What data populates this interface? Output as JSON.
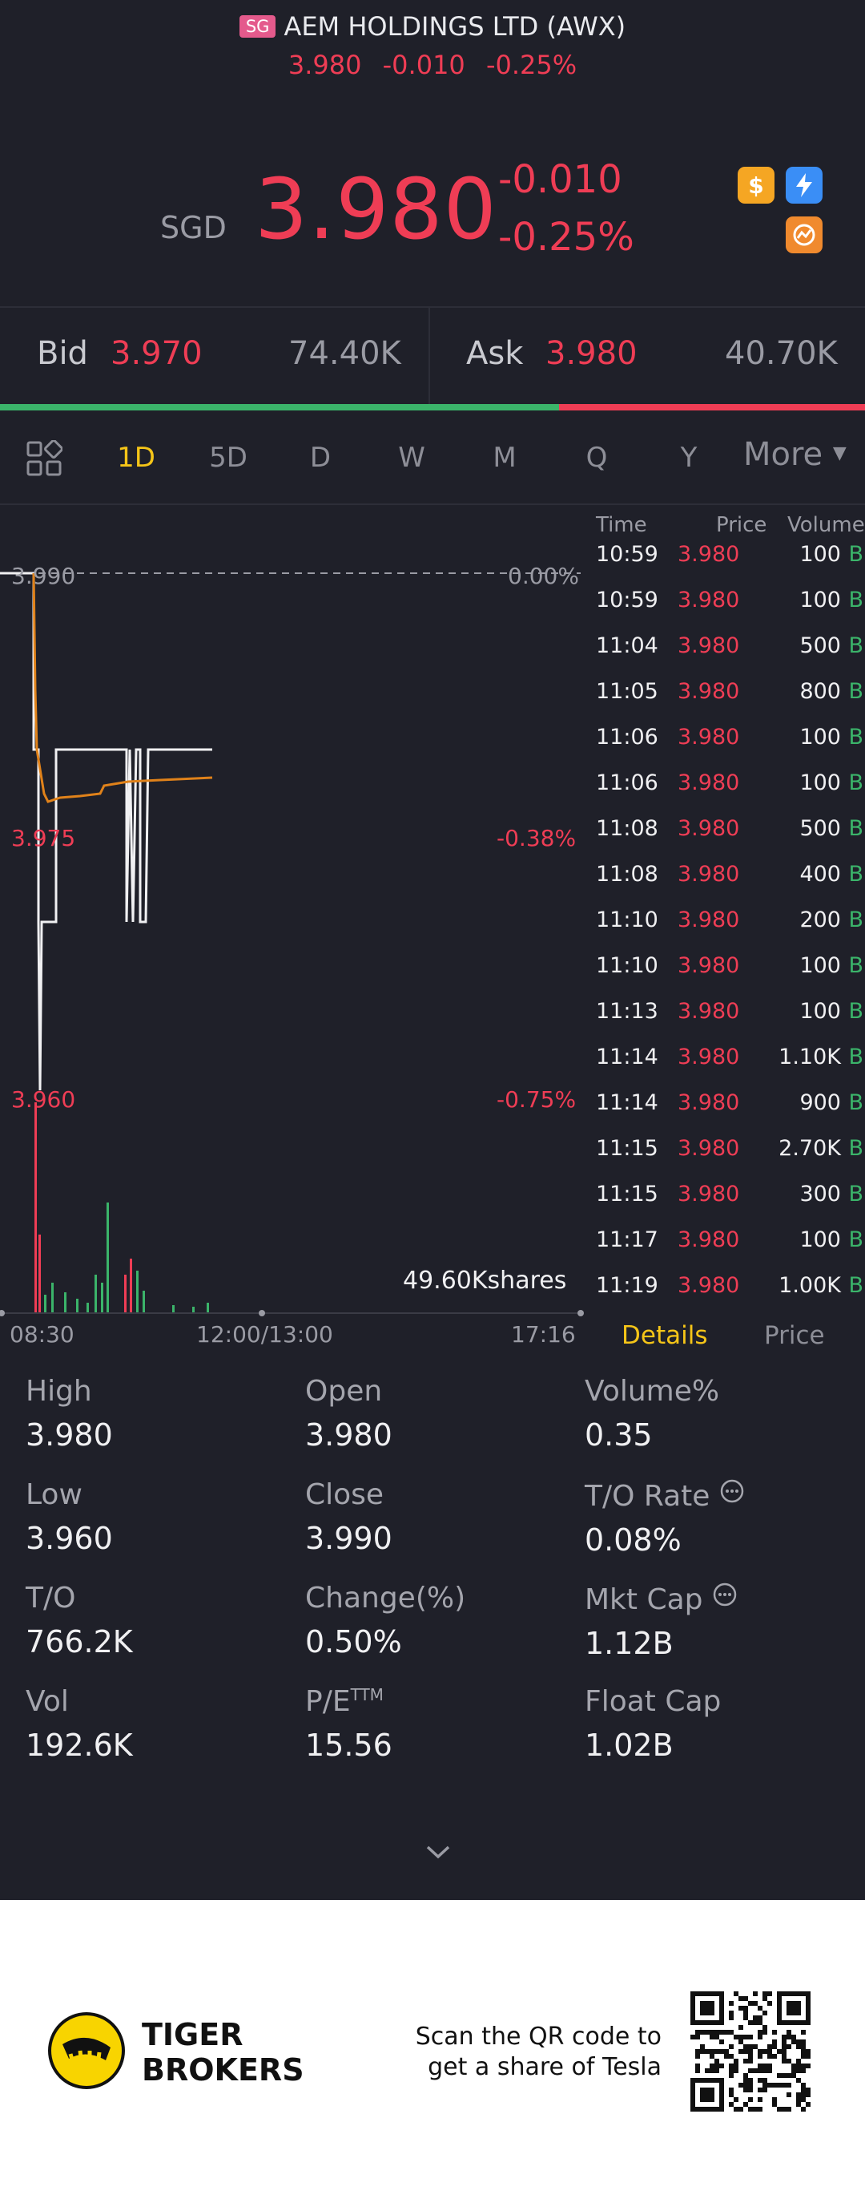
{
  "header": {
    "exchange_badge": "SG",
    "title": "AEM HOLDINGS LTD (AWX)",
    "sub_price": "3.980",
    "sub_change": "-0.010",
    "sub_pct": "-0.25%"
  },
  "quote": {
    "currency": "SGD",
    "price": "3.980",
    "change": "-0.010",
    "change_pct": "-0.25%",
    "icons": [
      "dollar-icon",
      "lightning-icon",
      "options-icon"
    ]
  },
  "bidask": {
    "bid_label": "Bid",
    "bid_price": "3.970",
    "bid_volume": "74.40K",
    "ask_label": "Ask",
    "ask_price": "3.980",
    "ask_volume": "40.70K",
    "bid_ratio": 0.646
  },
  "tabs": {
    "items": [
      "1D",
      "5D",
      "D",
      "W",
      "M",
      "Q",
      "Y"
    ],
    "active": "1D",
    "more": "More"
  },
  "chart": {
    "price_labels": [
      "3.990",
      "3.975",
      "3.960"
    ],
    "pct_labels": [
      "0.00%",
      "-0.38%",
      "-0.75%"
    ],
    "volume_label": "49.60Kshares",
    "time_labels": [
      "08:30",
      "12:00/13:00",
      "17:16"
    ]
  },
  "trades": {
    "headers": [
      "Time",
      "Price",
      "Volume"
    ],
    "rows": [
      {
        "time": "10:59",
        "price": "3.980",
        "vol": "100",
        "side": "B"
      },
      {
        "time": "10:59",
        "price": "3.980",
        "vol": "100",
        "side": "B"
      },
      {
        "time": "11:04",
        "price": "3.980",
        "vol": "500",
        "side": "B"
      },
      {
        "time": "11:05",
        "price": "3.980",
        "vol": "800",
        "side": "B"
      },
      {
        "time": "11:06",
        "price": "3.980",
        "vol": "100",
        "side": "B"
      },
      {
        "time": "11:06",
        "price": "3.980",
        "vol": "100",
        "side": "B"
      },
      {
        "time": "11:08",
        "price": "3.980",
        "vol": "500",
        "side": "B"
      },
      {
        "time": "11:08",
        "price": "3.980",
        "vol": "400",
        "side": "B"
      },
      {
        "time": "11:10",
        "price": "3.980",
        "vol": "200",
        "side": "B"
      },
      {
        "time": "11:10",
        "price": "3.980",
        "vol": "100",
        "side": "B"
      },
      {
        "time": "11:13",
        "price": "3.980",
        "vol": "100",
        "side": "B"
      },
      {
        "time": "11:14",
        "price": "3.980",
        "vol": "1.10K",
        "side": "B"
      },
      {
        "time": "11:14",
        "price": "3.980",
        "vol": "900",
        "side": "B"
      },
      {
        "time": "11:15",
        "price": "3.980",
        "vol": "2.70K",
        "side": "B"
      },
      {
        "time": "11:15",
        "price": "3.980",
        "vol": "300",
        "side": "B"
      },
      {
        "time": "11:17",
        "price": "3.980",
        "vol": "100",
        "side": "B"
      },
      {
        "time": "11:19",
        "price": "3.980",
        "vol": "1.00K",
        "side": "B"
      }
    ],
    "details_tab": "Details",
    "price_tab": "Price"
  },
  "stats": {
    "items": [
      {
        "label": "High",
        "value": "3.980"
      },
      {
        "label": "Open",
        "value": "3.980"
      },
      {
        "label": "Volume%",
        "value": "0.35"
      },
      {
        "label": "Low",
        "value": "3.960"
      },
      {
        "label": "Close",
        "value": "3.990"
      },
      {
        "label": "T/O Rate",
        "value": "0.08%"
      },
      {
        "label": "T/O",
        "value": "766.2K"
      },
      {
        "label": "Change(%)",
        "value": "0.50%"
      },
      {
        "label": "Mkt Cap",
        "value": "1.12B"
      },
      {
        "label": "Vol",
        "value": "192.6K"
      },
      {
        "label": "P/E",
        "value": "15.56"
      },
      {
        "label": "Float Cap",
        "value": "1.02B"
      }
    ],
    "pe_superscript": "TTM"
  },
  "footer": {
    "brand_line1": "TIGER",
    "brand_line2": "BROKERS",
    "promo_line1": "Scan the QR code to",
    "promo_line2": "get a share of Tesla"
  },
  "colors": {
    "background": "#1f2029",
    "down": "#ef3d55",
    "up": "#3bb46a",
    "active_tab": "#f5c518"
  }
}
